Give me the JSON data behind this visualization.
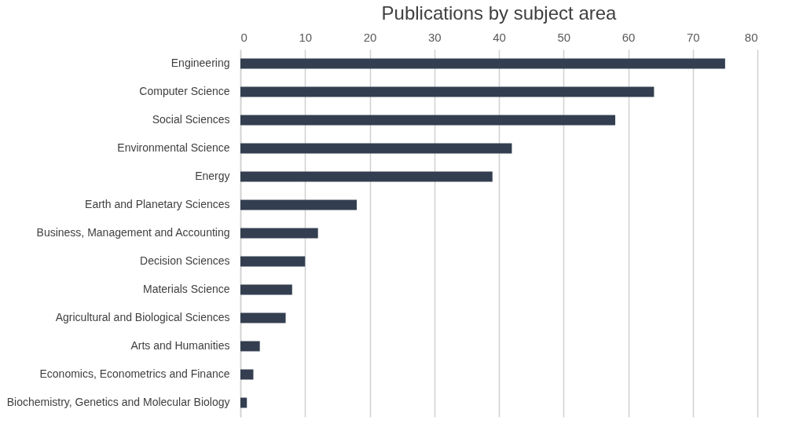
{
  "chart_data": {
    "type": "bar",
    "orientation": "horizontal",
    "title": "Publications by subject area",
    "categories": [
      "Engineering",
      "Computer Science",
      "Social Sciences",
      "Environmental Science",
      "Energy",
      "Earth and Planetary Sciences",
      "Business, Management and Accounting",
      "Decision Sciences",
      "Materials Science",
      "Agricultural and Biological Sciences",
      "Arts and Humanities",
      "Economics, Econometrics and Finance",
      "Biochemistry, Genetics and Molecular Biology"
    ],
    "values": [
      75,
      64,
      58,
      42,
      39,
      18,
      12,
      10,
      8,
      7,
      3,
      2,
      1
    ],
    "color": "#333f50",
    "xlim": [
      0,
      80
    ],
    "xticks": [
      0,
      10,
      20,
      30,
      40,
      50,
      60,
      70,
      80
    ],
    "grid": "x"
  }
}
